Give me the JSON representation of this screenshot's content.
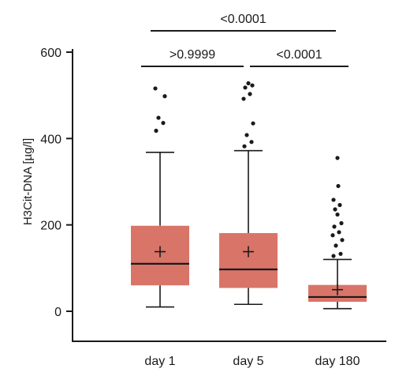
{
  "chart_data": {
    "type": "box",
    "ylabel": "H3Cit-DNA [µg/l]",
    "ylim": [
      0,
      600
    ],
    "yticks": [
      0,
      200,
      400,
      600
    ],
    "box_color": "#d97468",
    "categories": [
      "day 1",
      "day 5",
      "day 180"
    ],
    "boxes": [
      {
        "name": "day 1",
        "whisker_low": 10,
        "q1": 60,
        "median": 110,
        "q3": 198,
        "whisker_high": 368,
        "mean": 138,
        "outliers": [
          418,
          436,
          448,
          498,
          516
        ]
      },
      {
        "name": "day 5",
        "whisker_low": 16,
        "q1": 54,
        "median": 97,
        "q3": 181,
        "whisker_high": 372,
        "mean": 138,
        "outliers": [
          382,
          392,
          408,
          435,
          492,
          503,
          518,
          523,
          528
        ]
      },
      {
        "name": "day 180",
        "whisker_low": 6,
        "q1": 22,
        "median": 33,
        "q3": 61,
        "whisker_high": 120,
        "mean": 50,
        "outliers": [
          128,
          133,
          152,
          165,
          176,
          183,
          196,
          204,
          224,
          236,
          246,
          258,
          290,
          355
        ]
      }
    ],
    "comparisons": [
      {
        "from": 0,
        "to": 1,
        "label": ">0.9999",
        "level": 1
      },
      {
        "from": 1,
        "to": 2,
        "label": "<0.0001",
        "level": 1
      },
      {
        "from": 0,
        "to": 2,
        "label": "<0.0001",
        "level": 2
      }
    ]
  }
}
